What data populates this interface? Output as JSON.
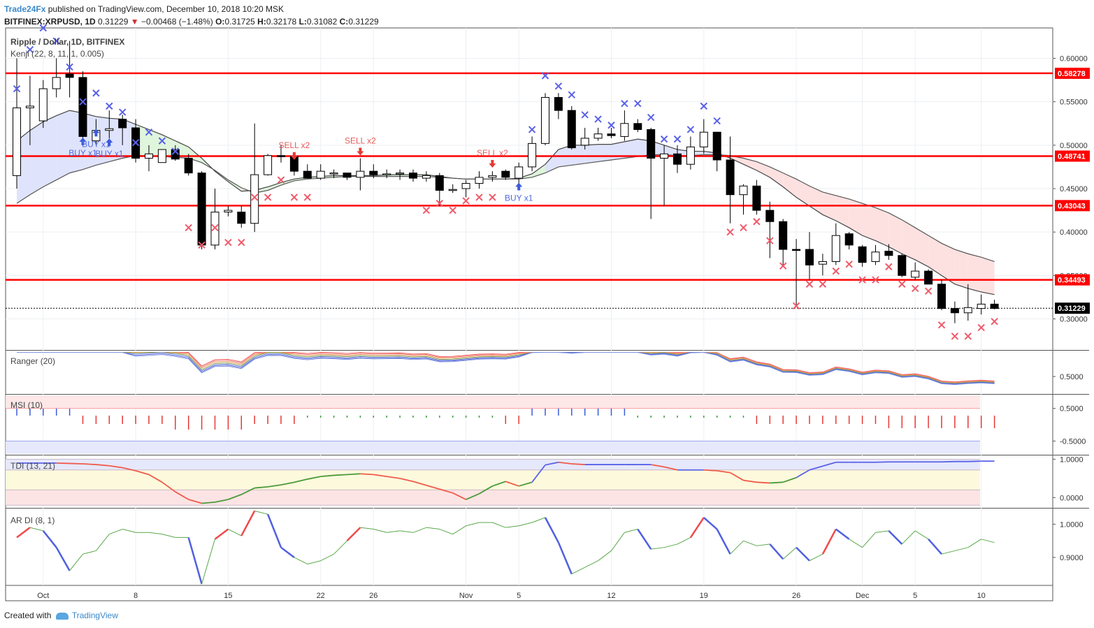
{
  "header": {
    "publisher": "Trade24Fx",
    "published_text": "published on TradingView.com, December 10, 2018 10:20 MSK",
    "symbol": "BITFINEX:XRPUSD, 1D",
    "last": "0.31229",
    "change": "−0.00468 (−1.48%)",
    "o_label": "O:",
    "o": "0.31725",
    "h_label": "H:",
    "h": "0.32178",
    "l_label": "L:",
    "l": "0.31082",
    "c_label": "C:",
    "c": "0.31229"
  },
  "footer": {
    "created_with": "Created with",
    "brand": "TradingView"
  },
  "colors": {
    "up_body": "#ffffff",
    "down_body": "#000000",
    "level": "#ff0000",
    "buy": "#3b5bdb",
    "sell": "#e53935",
    "grid": "#eceff3",
    "price_tag": "#000000"
  },
  "chart_data": [
    {
      "type": "candlestick",
      "title": "Ripple / Dollar, 1D, BITFINEX",
      "indicator_label": "Kenji (22, 8, 11, 1, 0.005)",
      "x_ticks": [
        "Oct",
        "8",
        "15",
        "22",
        "26",
        "Nov",
        "5",
        "12",
        "19",
        "26",
        "Dec",
        "5",
        "10"
      ],
      "y_ticks": [
        0.6,
        0.55,
        0.5,
        0.45,
        0.4,
        0.35,
        0.3
      ],
      "y_tick_labels": [
        "0.60000",
        "0.55000",
        "0.50000",
        "0.45000",
        "0.40000",
        "0.35000",
        "0.30000"
      ],
      "ylim": [
        0.265,
        0.635
      ],
      "levels": [
        {
          "value": 0.58278,
          "label": "0.58278"
        },
        {
          "value": 0.48741,
          "label": "0.48741"
        },
        {
          "value": 0.43043,
          "label": "0.43043"
        },
        {
          "value": 0.34493,
          "label": "0.34493"
        }
      ],
      "last_price": {
        "value": 0.31229,
        "label": "0.31229"
      },
      "candles": [
        {
          "o": 0.465,
          "h": 0.6,
          "l": 0.45,
          "c": 0.543
        },
        {
          "o": 0.543,
          "h": 0.58,
          "l": 0.5,
          "c": 0.545
        },
        {
          "o": 0.528,
          "h": 0.575,
          "l": 0.52,
          "c": 0.565
        },
        {
          "o": 0.565,
          "h": 0.6,
          "l": 0.555,
          "c": 0.578
        },
        {
          "o": 0.582,
          "h": 0.62,
          "l": 0.555,
          "c": 0.578
        },
        {
          "o": 0.578,
          "h": 0.585,
          "l": 0.5,
          "c": 0.51
        },
        {
          "o": 0.505,
          "h": 0.53,
          "l": 0.5,
          "c": 0.517
        },
        {
          "o": 0.517,
          "h": 0.54,
          "l": 0.508,
          "c": 0.519
        },
        {
          "o": 0.53,
          "h": 0.535,
          "l": 0.5,
          "c": 0.52
        },
        {
          "o": 0.52,
          "h": 0.53,
          "l": 0.48,
          "c": 0.485
        },
        {
          "o": 0.485,
          "h": 0.5,
          "l": 0.47,
          "c": 0.49
        },
        {
          "o": 0.48,
          "h": 0.495,
          "l": 0.48,
          "c": 0.495
        },
        {
          "o": 0.495,
          "h": 0.5,
          "l": 0.482,
          "c": 0.484
        },
        {
          "o": 0.485,
          "h": 0.49,
          "l": 0.465,
          "c": 0.468
        },
        {
          "o": 0.468,
          "h": 0.47,
          "l": 0.38,
          "c": 0.385
        },
        {
          "o": 0.385,
          "h": 0.45,
          "l": 0.38,
          "c": 0.423
        },
        {
          "o": 0.423,
          "h": 0.43,
          "l": 0.418,
          "c": 0.425
        },
        {
          "o": 0.423,
          "h": 0.43,
          "l": 0.405,
          "c": 0.41
        },
        {
          "o": 0.41,
          "h": 0.525,
          "l": 0.4,
          "c": 0.466
        },
        {
          "o": 0.466,
          "h": 0.49,
          "l": 0.465,
          "c": 0.488
        },
        {
          "o": 0.488,
          "h": 0.5,
          "l": 0.48,
          "c": 0.487
        },
        {
          "o": 0.487,
          "h": 0.49,
          "l": 0.465,
          "c": 0.47
        },
        {
          "o": 0.47,
          "h": 0.478,
          "l": 0.462,
          "c": 0.462
        },
        {
          "o": 0.462,
          "h": 0.478,
          "l": 0.46,
          "c": 0.47
        },
        {
          "o": 0.468,
          "h": 0.472,
          "l": 0.462,
          "c": 0.468
        },
        {
          "o": 0.468,
          "h": 0.468,
          "l": 0.46,
          "c": 0.463
        },
        {
          "o": 0.463,
          "h": 0.485,
          "l": 0.448,
          "c": 0.47
        },
        {
          "o": 0.47,
          "h": 0.478,
          "l": 0.462,
          "c": 0.466
        },
        {
          "o": 0.466,
          "h": 0.472,
          "l": 0.462,
          "c": 0.467
        },
        {
          "o": 0.467,
          "h": 0.472,
          "l": 0.46,
          "c": 0.468
        },
        {
          "o": 0.468,
          "h": 0.472,
          "l": 0.458,
          "c": 0.462
        },
        {
          "o": 0.462,
          "h": 0.47,
          "l": 0.458,
          "c": 0.465
        },
        {
          "o": 0.465,
          "h": 0.468,
          "l": 0.43,
          "c": 0.448
        },
        {
          "o": 0.448,
          "h": 0.455,
          "l": 0.445,
          "c": 0.449
        },
        {
          "o": 0.45,
          "h": 0.46,
          "l": 0.44,
          "c": 0.456
        },
        {
          "o": 0.456,
          "h": 0.47,
          "l": 0.45,
          "c": 0.463
        },
        {
          "o": 0.463,
          "h": 0.47,
          "l": 0.458,
          "c": 0.465
        },
        {
          "o": 0.47,
          "h": 0.472,
          "l": 0.46,
          "c": 0.463
        },
        {
          "o": 0.462,
          "h": 0.48,
          "l": 0.455,
          "c": 0.475
        },
        {
          "o": 0.475,
          "h": 0.51,
          "l": 0.47,
          "c": 0.502
        },
        {
          "o": 0.502,
          "h": 0.56,
          "l": 0.5,
          "c": 0.555
        },
        {
          "o": 0.555,
          "h": 0.56,
          "l": 0.53,
          "c": 0.54
        },
        {
          "o": 0.54,
          "h": 0.545,
          "l": 0.495,
          "c": 0.497
        },
        {
          "o": 0.5,
          "h": 0.52,
          "l": 0.495,
          "c": 0.508
        },
        {
          "o": 0.508,
          "h": 0.52,
          "l": 0.505,
          "c": 0.513
        },
        {
          "o": 0.513,
          "h": 0.52,
          "l": 0.508,
          "c": 0.511
        },
        {
          "o": 0.51,
          "h": 0.54,
          "l": 0.505,
          "c": 0.525
        },
        {
          "o": 0.525,
          "h": 0.53,
          "l": 0.515,
          "c": 0.518
        },
        {
          "o": 0.518,
          "h": 0.52,
          "l": 0.415,
          "c": 0.485
        },
        {
          "o": 0.485,
          "h": 0.5,
          "l": 0.43,
          "c": 0.49
        },
        {
          "o": 0.49,
          "h": 0.5,
          "l": 0.468,
          "c": 0.478
        },
        {
          "o": 0.478,
          "h": 0.51,
          "l": 0.472,
          "c": 0.498
        },
        {
          "o": 0.498,
          "h": 0.53,
          "l": 0.49,
          "c": 0.515
        },
        {
          "o": 0.515,
          "h": 0.515,
          "l": 0.47,
          "c": 0.483
        },
        {
          "o": 0.483,
          "h": 0.51,
          "l": 0.41,
          "c": 0.443
        },
        {
          "o": 0.443,
          "h": 0.455,
          "l": 0.42,
          "c": 0.453
        },
        {
          "o": 0.453,
          "h": 0.46,
          "l": 0.42,
          "c": 0.425
        },
        {
          "o": 0.425,
          "h": 0.435,
          "l": 0.37,
          "c": 0.412
        },
        {
          "o": 0.412,
          "h": 0.415,
          "l": 0.36,
          "c": 0.38
        },
        {
          "o": 0.38,
          "h": 0.392,
          "l": 0.315,
          "c": 0.379
        },
        {
          "o": 0.38,
          "h": 0.4,
          "l": 0.345,
          "c": 0.362
        },
        {
          "o": 0.363,
          "h": 0.375,
          "l": 0.35,
          "c": 0.366
        },
        {
          "o": 0.366,
          "h": 0.41,
          "l": 0.362,
          "c": 0.396
        },
        {
          "o": 0.398,
          "h": 0.4,
          "l": 0.38,
          "c": 0.385
        },
        {
          "o": 0.383,
          "h": 0.385,
          "l": 0.36,
          "c": 0.365
        },
        {
          "o": 0.366,
          "h": 0.385,
          "l": 0.362,
          "c": 0.377
        },
        {
          "o": 0.378,
          "h": 0.386,
          "l": 0.368,
          "c": 0.373
        },
        {
          "o": 0.373,
          "h": 0.375,
          "l": 0.348,
          "c": 0.35
        },
        {
          "o": 0.348,
          "h": 0.365,
          "l": 0.345,
          "c": 0.355
        },
        {
          "o": 0.355,
          "h": 0.357,
          "l": 0.34,
          "c": 0.34
        },
        {
          "o": 0.34,
          "h": 0.345,
          "l": 0.31,
          "c": 0.312
        },
        {
          "o": 0.312,
          "h": 0.32,
          "l": 0.295,
          "c": 0.307
        },
        {
          "o": 0.307,
          "h": 0.34,
          "l": 0.298,
          "c": 0.313
        },
        {
          "o": 0.312,
          "h": 0.328,
          "l": 0.305,
          "c": 0.317
        },
        {
          "o": 0.317,
          "h": 0.322,
          "l": 0.311,
          "c": 0.312
        }
      ],
      "kenji_fast": [
        0.505,
        0.517,
        0.527,
        0.534,
        0.54,
        0.537,
        0.533,
        0.531,
        0.53,
        0.524,
        0.518,
        0.512,
        0.505,
        0.498,
        0.485,
        0.47,
        0.458,
        0.447,
        0.448,
        0.452,
        0.457,
        0.461,
        0.463,
        0.464,
        0.465,
        0.465,
        0.465,
        0.465,
        0.466,
        0.466,
        0.466,
        0.466,
        0.464,
        0.462,
        0.461,
        0.461,
        0.461,
        0.461,
        0.462,
        0.467,
        0.478,
        0.495,
        0.5,
        0.5,
        0.501,
        0.501,
        0.504,
        0.507,
        0.505,
        0.5,
        0.495,
        0.493,
        0.493,
        0.491,
        0.485,
        0.478,
        0.471,
        0.463,
        0.452,
        0.44,
        0.43,
        0.42,
        0.413,
        0.405,
        0.396,
        0.39,
        0.383,
        0.375,
        0.368,
        0.36,
        0.35,
        0.34,
        0.335,
        0.331,
        0.328
      ],
      "kenji_slow": [
        0.433,
        0.443,
        0.452,
        0.46,
        0.468,
        0.472,
        0.477,
        0.481,
        0.485,
        0.488,
        0.488,
        0.487,
        0.486,
        0.485,
        0.48,
        0.471,
        0.46,
        0.451,
        0.445,
        0.448,
        0.454,
        0.459,
        0.461,
        0.462,
        0.463,
        0.464,
        0.464,
        0.464,
        0.464,
        0.464,
        0.464,
        0.464,
        0.463,
        0.462,
        0.461,
        0.461,
        0.461,
        0.461,
        0.461,
        0.463,
        0.468,
        0.475,
        0.477,
        0.479,
        0.481,
        0.483,
        0.485,
        0.487,
        0.489,
        0.489,
        0.488,
        0.488,
        0.489,
        0.489,
        0.488,
        0.485,
        0.481,
        0.475,
        0.468,
        0.461,
        0.453,
        0.446,
        0.442,
        0.438,
        0.433,
        0.428,
        0.422,
        0.414,
        0.405,
        0.396,
        0.387,
        0.38,
        0.375,
        0.371,
        0.366
      ],
      "markers_x_blue": [
        [
          0,
          0.565
        ],
        [
          1,
          0.61
        ],
        [
          2,
          0.635
        ],
        [
          3,
          0.62
        ],
        [
          4,
          0.59
        ],
        [
          5,
          0.55
        ],
        [
          6,
          0.56
        ],
        [
          7,
          0.545
        ],
        [
          8,
          0.538
        ],
        [
          9,
          0.503
        ],
        [
          10,
          0.515
        ],
        [
          11,
          0.505
        ],
        [
          12,
          0.493
        ],
        [
          39,
          0.518
        ],
        [
          40,
          0.58
        ],
        [
          41,
          0.568
        ],
        [
          42,
          0.558
        ],
        [
          43,
          0.535
        ],
        [
          44,
          0.53
        ],
        [
          45,
          0.523
        ],
        [
          46,
          0.548
        ],
        [
          47,
          0.548
        ],
        [
          48,
          0.532
        ],
        [
          49,
          0.507
        ],
        [
          50,
          0.507
        ],
        [
          51,
          0.518
        ],
        [
          52,
          0.545
        ],
        [
          53,
          0.528
        ]
      ],
      "markers_x_red": [
        [
          13,
          0.405
        ],
        [
          14,
          0.385
        ],
        [
          15,
          0.405
        ],
        [
          16,
          0.388
        ],
        [
          17,
          0.388
        ],
        [
          18,
          0.44
        ],
        [
          19,
          0.44
        ],
        [
          20,
          0.46
        ],
        [
          21,
          0.44
        ],
        [
          22,
          0.44
        ],
        [
          31,
          0.425
        ],
        [
          32,
          0.433
        ],
        [
          33,
          0.425
        ],
        [
          34,
          0.436
        ],
        [
          35,
          0.44
        ],
        [
          36,
          0.44
        ],
        [
          54,
          0.4
        ],
        [
          55,
          0.405
        ],
        [
          56,
          0.412
        ],
        [
          57,
          0.39
        ],
        [
          58,
          0.361
        ],
        [
          59,
          0.315
        ],
        [
          60,
          0.34
        ],
        [
          61,
          0.34
        ],
        [
          62,
          0.355
        ],
        [
          63,
          0.363
        ],
        [
          64,
          0.345
        ],
        [
          65,
          0.345
        ],
        [
          66,
          0.36
        ],
        [
          67,
          0.34
        ],
        [
          68,
          0.335
        ],
        [
          69,
          0.332
        ],
        [
          70,
          0.293
        ],
        [
          71,
          0.28
        ],
        [
          72,
          0.28
        ],
        [
          73,
          0.29
        ],
        [
          74,
          0.297
        ]
      ],
      "signals": [
        {
          "i": 5,
          "v": 0.504,
          "kind": "buy",
          "text": "BUY x1"
        },
        {
          "i": 6,
          "v": 0.514,
          "kind": "buy",
          "text": "BUY x1"
        },
        {
          "i": 7,
          "v": 0.503,
          "kind": "buy",
          "text": "BUY x1"
        },
        {
          "i": 21,
          "v": 0.488,
          "kind": "sell",
          "text": "SELL x2"
        },
        {
          "i": 26,
          "v": 0.493,
          "kind": "sell",
          "text": "SELL x2"
        },
        {
          "i": 36,
          "v": 0.479,
          "kind": "sell",
          "text": "SELL x2"
        },
        {
          "i": 38,
          "v": 0.452,
          "kind": "buy",
          "text": "BUY x1"
        }
      ]
    },
    {
      "type": "line",
      "title": "Ranger (20)",
      "y_ticks": [
        0.5
      ],
      "y_tick_labels": [
        "0.5000"
      ],
      "ylim": [
        0.2,
        0.95
      ]
    },
    {
      "type": "bar",
      "title": "MSI (10)",
      "y_ticks": [
        0.5,
        -0.5
      ],
      "y_tick_labels": [
        "0.5000",
        "-0.5000"
      ],
      "ylim": [
        -0.9,
        0.9
      ],
      "bands": [
        {
          "from": 0.5,
          "to": 0.9,
          "color": "#fde7e7"
        },
        {
          "from": -0.9,
          "to": -0.5,
          "color": "#e6e8fb"
        }
      ]
    },
    {
      "type": "line",
      "title": "TDI (13, 21)",
      "y_ticks": [
        1.0,
        0.0
      ],
      "y_tick_labels": [
        "1.0000",
        "0.0000"
      ],
      "ylim": [
        -0.25,
        1.08
      ],
      "values": [
        0.9,
        0.9,
        0.9,
        0.9,
        0.89,
        0.88,
        0.86,
        0.83,
        0.78,
        0.7,
        0.6,
        0.4,
        0.15,
        -0.05,
        -0.15,
        -0.12,
        -0.05,
        0.08,
        0.25,
        0.28,
        0.33,
        0.4,
        0.48,
        0.55,
        0.58,
        0.6,
        0.62,
        0.6,
        0.55,
        0.5,
        0.42,
        0.32,
        0.22,
        0.12,
        -0.05,
        0.1,
        0.3,
        0.42,
        0.3,
        0.4,
        0.85,
        0.92,
        0.88,
        0.86,
        0.86,
        0.86,
        0.86,
        0.86,
        0.86,
        0.8,
        0.72,
        0.72,
        0.72,
        0.7,
        0.65,
        0.45,
        0.4,
        0.38,
        0.4,
        0.52,
        0.72,
        0.82,
        0.92,
        0.92,
        0.92,
        0.92,
        0.93,
        0.93,
        0.93,
        0.93,
        0.93,
        0.94,
        0.94,
        0.95,
        0.95
      ]
    },
    {
      "type": "line",
      "title": "AR DI (8, 1)",
      "y_ticks": [
        1.0,
        0.9
      ],
      "y_tick_labels": [
        "1.0000",
        "0.9000"
      ],
      "ylim": [
        0.82,
        1.045
      ],
      "values": [
        0.96,
        0.99,
        0.98,
        0.93,
        0.86,
        0.91,
        0.92,
        0.97,
        0.985,
        0.975,
        0.975,
        0.97,
        0.96,
        0.96,
        0.82,
        0.955,
        0.985,
        0.965,
        1.04,
        1.03,
        0.93,
        0.9,
        0.88,
        0.89,
        0.91,
        0.95,
        0.99,
        0.985,
        0.975,
        0.98,
        0.975,
        0.99,
        0.985,
        0.97,
        0.995,
        1.005,
        1.005,
        0.99,
        0.995,
        1.005,
        1.02,
        0.945,
        0.85,
        0.87,
        0.89,
        0.92,
        0.975,
        0.985,
        0.925,
        0.93,
        0.94,
        0.96,
        1.02,
        0.985,
        0.91,
        0.95,
        0.935,
        0.94,
        0.895,
        0.93,
        0.89,
        0.91,
        0.985,
        0.955,
        0.93,
        0.975,
        0.98,
        0.94,
        0.98,
        0.955,
        0.91,
        0.92,
        0.93,
        0.955,
        0.945
      ]
    }
  ]
}
